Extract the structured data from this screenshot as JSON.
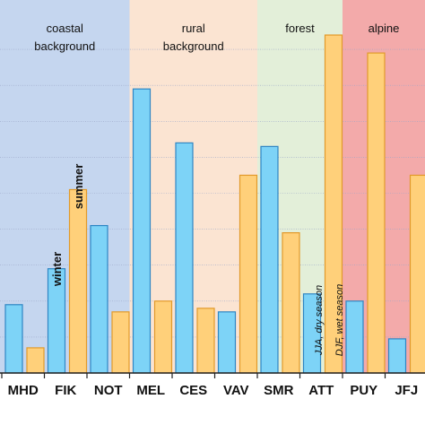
{
  "chart_data": {
    "type": "bar",
    "title": "",
    "xlabel": "",
    "ylabel": "",
    "ylim": [
      0,
      10
    ],
    "grid": false,
    "categories": [
      "MHD",
      "FIK",
      "NOT",
      "MEL",
      "CES",
      "VAV",
      "SMR",
      "ATT",
      "PUY",
      "JFJ"
    ],
    "series": [
      {
        "name": "winter",
        "values": [
          1.9,
          2.9,
          4.1,
          7.9,
          6.4,
          1.7,
          6.3,
          2.2,
          2.0,
          0.95
        ]
      },
      {
        "name": "summer",
        "values": [
          0.7,
          5.1,
          1.7,
          2.0,
          1.8,
          5.5,
          3.9,
          9.4,
          8.9,
          5.5
        ]
      }
    ],
    "regions": [
      {
        "label_lines": [
          "coastal",
          "background"
        ],
        "start": 0,
        "end": 3,
        "color": "#c5d6ef"
      },
      {
        "label_lines": [
          "rural",
          "background"
        ],
        "start": 3,
        "end": 6,
        "color": "#fbe4d2"
      },
      {
        "label_lines": [
          "forest"
        ],
        "start": 6,
        "end": 8,
        "color": "#e3efd9"
      },
      {
        "label_lines": [
          "alpine"
        ],
        "start": 8,
        "end": 10,
        "color": "#f3aaaa"
      }
    ],
    "annotations": [
      "JJA, dry season",
      "DJF, wet season"
    ],
    "colors": {
      "winter_fill": "#7dd3f7",
      "winter_stroke": "#2f86c4",
      "summer_fill": "#ffd07a",
      "summer_stroke": "#e29a2a",
      "axis": "#222222",
      "gridline": "#9aa6c8"
    }
  }
}
